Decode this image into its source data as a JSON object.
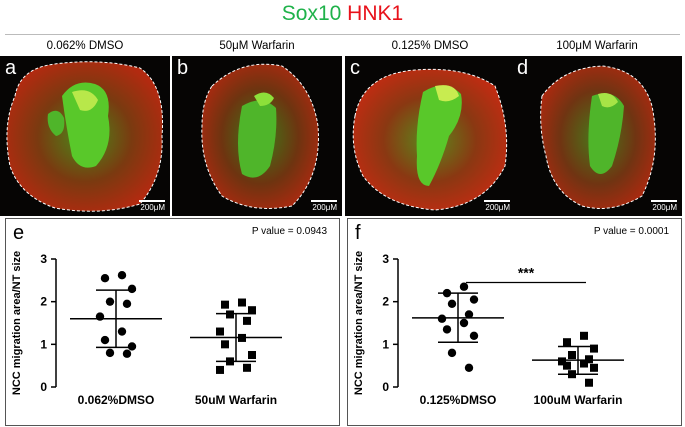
{
  "title": {
    "part1": "Sox10",
    "part2": "HNK1"
  },
  "panels": [
    {
      "letter": "a",
      "label": "0.062% DMSO",
      "scale": "200μM"
    },
    {
      "letter": "b",
      "label": "50μM Warfarin",
      "scale": "200μM"
    },
    {
      "letter": "c",
      "label": "0.125% DMSO",
      "scale": "200μM"
    },
    {
      "letter": "d",
      "label": "100μM Warfarin",
      "scale": "200μM"
    }
  ],
  "colors": {
    "green": "#1fb24a",
    "red": "#e8111a"
  },
  "chart_data": [
    {
      "panel": "e",
      "type": "scatter",
      "pvalue": "P value = 0.0943",
      "ylabel": "NCC migration area/NT size",
      "ylim": [
        0,
        3
      ],
      "yticks": [
        "0",
        "1",
        "2",
        "3"
      ],
      "categories": [
        "0.062%DMSO",
        "50uM Warfarin"
      ],
      "markers": [
        "circle",
        "square"
      ],
      "series": [
        {
          "values": [
            2.62,
            2.55,
            2.3,
            2.0,
            1.95,
            1.65,
            1.3,
            1.1,
            0.95,
            0.8,
            0.78
          ],
          "mean": 1.6,
          "sd_low": 0.93,
          "sd_high": 2.27
        },
        {
          "values": [
            1.98,
            1.93,
            1.8,
            1.7,
            1.55,
            1.3,
            1.15,
            1.0,
            0.75,
            0.6,
            0.45,
            0.4
          ],
          "mean": 1.16,
          "sd_low": 0.6,
          "sd_high": 1.72
        }
      ]
    },
    {
      "panel": "f",
      "type": "scatter",
      "pvalue": "P value = 0.0001",
      "significance": "***",
      "ylabel": "NCC migration area/NT size",
      "ylim": [
        0,
        3
      ],
      "yticks": [
        "0",
        "1",
        "2",
        "3"
      ],
      "categories": [
        "0.125%DMSO",
        "100uM Warfarin"
      ],
      "markers": [
        "circle",
        "square"
      ],
      "series": [
        {
          "values": [
            2.35,
            2.2,
            2.05,
            1.95,
            1.7,
            1.6,
            1.5,
            1.35,
            1.2,
            0.8,
            0.45
          ],
          "mean": 1.62,
          "sd_low": 1.05,
          "sd_high": 2.2
        },
        {
          "values": [
            1.2,
            1.05,
            0.9,
            0.75,
            0.65,
            0.6,
            0.55,
            0.5,
            0.45,
            0.3,
            0.1
          ],
          "mean": 0.63,
          "sd_low": 0.3,
          "sd_high": 0.95
        }
      ]
    }
  ]
}
